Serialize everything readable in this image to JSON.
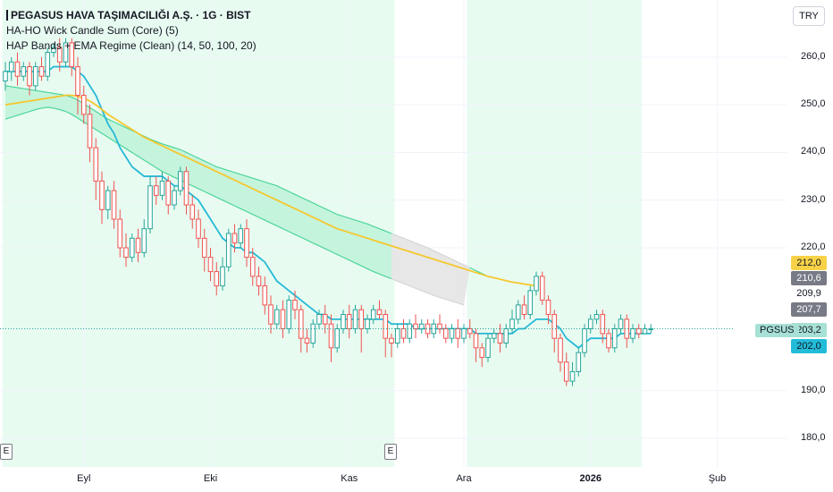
{
  "legend": {
    "title": "PEGASUS HAVA TAŞIMACILIĞI A.Ş. · 1G · BIST",
    "indicator1": "HA-HO Wick Candle Sum (Core) (5)",
    "indicator2": "HAP Bands + EMA Regime (Clean) (14, 50, 100, 20)"
  },
  "currency": "TRY",
  "symbol": "PGSUS",
  "price_tags": [
    {
      "label": "212,0",
      "bg": "#f7d247",
      "fg": "#131722"
    },
    {
      "label": "210,6",
      "bg": "#787b86",
      "fg": "#ffffff"
    },
    {
      "label": "209,9",
      "bg": "#ffffff",
      "fg": "#131722"
    },
    {
      "label": "207,7",
      "bg": "#787b86",
      "fg": "#ffffff"
    },
    {
      "label": "203,2",
      "bg": "#a7e0d4",
      "fg": "#131722"
    },
    {
      "label": "202,0",
      "bg": "#22bcd9",
      "fg": "#131722"
    }
  ],
  "events": [
    "E",
    "E"
  ],
  "colors": {
    "up": "#26a69a",
    "down": "#ef5350",
    "ema_fast": "#26b9d6",
    "ema_slow": "#f5c72e",
    "band_line": "#4cd699",
    "band_fill": "#b9f1d6",
    "neutral_fill": "#e4e4e4",
    "regime_bg": "#e8fbf1"
  },
  "chart_data": {
    "type": "candlestick",
    "title": "PEGASUS HAVA TAŞIMACILIĞI A.Ş. · 1G · BIST",
    "currency": "TRY",
    "ylim": [
      174,
      272
    ],
    "y_ticks": [
      {
        "value": 260,
        "label": "260,0"
      },
      {
        "value": 250,
        "label": "250,0"
      },
      {
        "value": 240,
        "label": "240,0"
      },
      {
        "value": 230,
        "label": "230,0"
      },
      {
        "value": 220,
        "label": "220,0"
      },
      {
        "value": 190,
        "label": "190,0"
      },
      {
        "value": 180,
        "label": "180,0"
      }
    ],
    "x_ticks": [
      {
        "index": 13,
        "label": "Eyl"
      },
      {
        "index": 34,
        "label": "Eki"
      },
      {
        "index": 57,
        "label": "Kas"
      },
      {
        "index": 76,
        "label": "Ara"
      },
      {
        "index": 97,
        "label": "2026",
        "bold": true
      },
      {
        "index": 118,
        "label": "Şub"
      }
    ],
    "events_at": [
      0,
      59
    ],
    "regime_shading": [
      [
        0,
        64
      ],
      [
        77,
        105
      ]
    ],
    "band_neutral_range": [
      64,
      77
    ],
    "x_count": 122,
    "candles": [
      [
        255,
        257,
        259,
        253
      ],
      [
        257,
        259,
        260,
        255
      ],
      [
        259,
        256,
        261,
        254
      ],
      [
        256,
        258,
        259,
        255
      ],
      [
        258,
        254,
        259,
        252
      ],
      [
        254,
        258,
        259,
        253
      ],
      [
        258,
        256,
        260,
        255
      ],
      [
        256,
        261,
        262,
        255
      ],
      [
        261,
        262,
        263,
        260
      ],
      [
        262,
        259,
        264,
        257
      ],
      [
        259,
        263,
        264,
        258
      ],
      [
        263,
        258,
        264,
        256
      ],
      [
        258,
        252,
        260,
        248
      ],
      [
        252,
        248,
        254,
        246
      ],
      [
        248,
        241,
        250,
        238
      ],
      [
        241,
        234,
        243,
        230
      ],
      [
        234,
        228,
        236,
        225
      ],
      [
        228,
        232,
        233,
        226
      ],
      [
        232,
        226,
        234,
        224
      ],
      [
        226,
        220,
        228,
        218
      ],
      [
        220,
        218,
        223,
        216
      ],
      [
        218,
        222,
        223,
        217
      ],
      [
        222,
        219,
        224,
        217
      ],
      [
        219,
        224,
        226,
        218
      ],
      [
        224,
        233,
        235,
        223
      ],
      [
        233,
        231,
        235,
        229
      ],
      [
        231,
        234,
        236,
        230
      ],
      [
        234,
        229,
        235,
        227
      ],
      [
        229,
        232,
        233,
        228
      ],
      [
        232,
        236,
        237,
        231
      ],
      [
        236,
        229,
        237,
        227
      ],
      [
        229,
        226,
        231,
        224
      ],
      [
        226,
        222,
        228,
        220
      ],
      [
        222,
        218,
        224,
        215
      ],
      [
        218,
        215,
        220,
        213
      ],
      [
        215,
        212,
        217,
        210
      ],
      [
        212,
        216,
        218,
        211
      ],
      [
        216,
        223,
        224,
        215
      ],
      [
        223,
        221,
        225,
        219
      ],
      [
        221,
        224,
        225,
        220
      ],
      [
        224,
        218,
        226,
        216
      ],
      [
        218,
        214,
        220,
        212
      ],
      [
        214,
        212,
        216,
        210
      ],
      [
        212,
        208,
        214,
        206
      ],
      [
        208,
        204,
        210,
        202
      ],
      [
        204,
        207,
        208,
        203
      ],
      [
        207,
        203,
        209,
        201
      ],
      [
        203,
        209,
        210,
        202
      ],
      [
        209,
        207,
        211,
        205
      ],
      [
        207,
        201,
        208,
        198
      ],
      [
        201,
        200,
        203,
        198
      ],
      [
        200,
        204,
        205,
        199
      ],
      [
        204,
        206,
        207,
        203
      ],
      [
        206,
        204,
        208,
        202
      ],
      [
        204,
        199,
        206,
        196
      ],
      [
        199,
        203,
        204,
        198
      ],
      [
        203,
        206,
        207,
        202
      ],
      [
        206,
        203,
        208,
        201
      ],
      [
        203,
        207,
        208,
        202
      ],
      [
        207,
        203,
        208,
        198
      ],
      [
        203,
        205,
        206,
        202
      ],
      [
        205,
        207,
        208,
        204
      ],
      [
        207,
        206,
        209,
        205
      ],
      [
        206,
        201,
        207,
        197
      ],
      [
        201,
        200,
        202,
        197
      ],
      [
        200,
        203,
        204,
        199
      ],
      [
        203,
        201,
        205,
        200
      ],
      [
        201,
        204,
        205,
        200
      ],
      [
        204,
        203,
        206,
        201
      ],
      [
        203,
        204,
        205,
        202
      ],
      [
        204,
        202,
        205,
        201
      ],
      [
        202,
        204,
        205,
        201
      ],
      [
        204,
        203,
        206,
        202
      ],
      [
        203,
        201,
        204,
        200
      ],
      [
        201,
        203,
        204,
        200
      ],
      [
        203,
        201,
        205,
        199
      ],
      [
        201,
        203,
        204,
        200
      ],
      [
        203,
        202,
        205,
        201
      ],
      [
        202,
        199,
        203,
        196
      ],
      [
        199,
        197,
        200,
        195
      ],
      [
        197,
        201,
        202,
        196
      ],
      [
        201,
        202,
        203,
        200
      ],
      [
        202,
        200,
        204,
        198
      ],
      [
        200,
        203,
        204,
        199
      ],
      [
        203,
        205,
        207,
        202
      ],
      [
        205,
        208,
        209,
        204
      ],
      [
        208,
        206,
        210,
        205
      ],
      [
        206,
        211,
        212,
        205
      ],
      [
        211,
        214,
        215,
        210
      ],
      [
        214,
        209,
        215,
        208
      ],
      [
        209,
        206,
        210,
        204
      ],
      [
        206,
        201,
        207,
        198
      ],
      [
        201,
        196,
        202,
        194
      ],
      [
        196,
        192,
        198,
        191
      ],
      [
        192,
        194,
        196,
        191
      ],
      [
        194,
        198,
        199,
        193
      ],
      [
        198,
        203,
        204,
        197
      ],
      [
        203,
        205,
        206,
        202
      ],
      [
        205,
        206,
        207,
        204
      ],
      [
        206,
        202,
        207,
        200
      ],
      [
        202,
        199,
        203,
        198
      ],
      [
        199,
        203,
        204,
        198
      ],
      [
        203,
        205,
        206,
        202
      ],
      [
        205,
        201,
        206,
        199
      ],
      [
        201,
        203,
        204,
        200
      ],
      [
        203,
        202,
        204,
        201
      ],
      [
        202,
        203,
        204,
        202
      ],
      [
        203,
        203,
        204,
        202
      ]
    ],
    "series": [
      {
        "name": "EMA fast",
        "color": "#26b9d6",
        "values": [
          257,
          257,
          257,
          257,
          257,
          257,
          257,
          257,
          258,
          258,
          258,
          258,
          257,
          256,
          254,
          252,
          249,
          246,
          244,
          241,
          239,
          237,
          236,
          235,
          235,
          235,
          235,
          234,
          233,
          233,
          232,
          231,
          230,
          228,
          226,
          224,
          222,
          221,
          220,
          220,
          219,
          219,
          218,
          217,
          215,
          213,
          212,
          211,
          210,
          209,
          208,
          207,
          206,
          206,
          205,
          205,
          205,
          205,
          205,
          205,
          205,
          205,
          205,
          205,
          204,
          204,
          204,
          204,
          203,
          203,
          203,
          203,
          203,
          203,
          203,
          203,
          203,
          203,
          202,
          202,
          202,
          202,
          202,
          202,
          202,
          203,
          203,
          204,
          205,
          205,
          205,
          204,
          203,
          201,
          200,
          199,
          200,
          201,
          201,
          201,
          201,
          201,
          202,
          202,
          202,
          202,
          202,
          202
        ]
      },
      {
        "name": "EMA slow",
        "color": "#f5c72e",
        "values": [
          250,
          250.2,
          250.4,
          250.6,
          250.8,
          251,
          251.2,
          251.4,
          251.6,
          251.8,
          252,
          252,
          251.8,
          251.4,
          250.8,
          250,
          249,
          248,
          247.2,
          246.4,
          245.6,
          244.8,
          244,
          243.2,
          242.6,
          242,
          241.4,
          240.8,
          240.2,
          239.6,
          239,
          238.4,
          237.8,
          237.2,
          236.6,
          236,
          235.4,
          234.8,
          234.2,
          233.6,
          233,
          232.4,
          231.8,
          231.2,
          230.6,
          230,
          229.4,
          228.8,
          228.2,
          227.6,
          227,
          226.4,
          225.8,
          225.2,
          224.6,
          224,
          223.6,
          223.2,
          222.8,
          222.4,
          222,
          221.6,
          221.2,
          220.8,
          220.4,
          220,
          219.6,
          219.2,
          218.8,
          218.4,
          218,
          217.6,
          217.2,
          216.8,
          216.4,
          216,
          215.6,
          215.2,
          214.8,
          214.4,
          214,
          213.7,
          213.4,
          213.1,
          212.8,
          212.6,
          212.4,
          212.2,
          212
        ]
      },
      {
        "name": "Band upper",
        "color": "#4cd699",
        "values": [
          254,
          253.8,
          253.6,
          253.4,
          253.2,
          253,
          252.8,
          252.6,
          252.4,
          252.2,
          252,
          251.6,
          251,
          250.2,
          249.4,
          248.6,
          247.8,
          247,
          246.4,
          245.8,
          245.2,
          244.6,
          244,
          243.4,
          242.8,
          242.3,
          241.8,
          241.4,
          241,
          240.6,
          240,
          239.4,
          238.8,
          238.2,
          237.6,
          237,
          236.6,
          236.2,
          235.8,
          235.4,
          235,
          234.6,
          234.2,
          233.8,
          233.4,
          233,
          232.4,
          231.8,
          231.2,
          230.6,
          230,
          229.4,
          228.8,
          228.2,
          227.6,
          227,
          226.6,
          226.2,
          225.8,
          225.4,
          225,
          224.5,
          224,
          223.5,
          223,
          222.5,
          222,
          221.5,
          221,
          220.5,
          220,
          219.4,
          218.8,
          218.2,
          217.6,
          217,
          216.4,
          215.8,
          215.2,
          214.6,
          214
        ]
      },
      {
        "name": "Band lower",
        "color": "#4cd699",
        "values": [
          247,
          247.4,
          247.8,
          248.2,
          248.6,
          249,
          249.3,
          249.5,
          249.3,
          249,
          248.6,
          248,
          247.2,
          246.4,
          245.6,
          244.8,
          244,
          243.2,
          242.4,
          241.6,
          240.8,
          240,
          239.2,
          238.4,
          237.6,
          236.8,
          236,
          235.4,
          234.8,
          234.2,
          233.6,
          233,
          232.4,
          231.8,
          231.2,
          230.6,
          230,
          229.4,
          228.8,
          228.2,
          227.6,
          227,
          226.4,
          225.8,
          225.2,
          224.6,
          224,
          223.4,
          222.8,
          222.2,
          221.6,
          221,
          220.4,
          219.8,
          219.2,
          218.6,
          218,
          217.4,
          216.8,
          216.2,
          215.6,
          215,
          214.5,
          214,
          213.5,
          213,
          212.5,
          212,
          211.5,
          211,
          210.5,
          210,
          209.6,
          209.2,
          208.8,
          208.4,
          208
        ]
      }
    ]
  }
}
